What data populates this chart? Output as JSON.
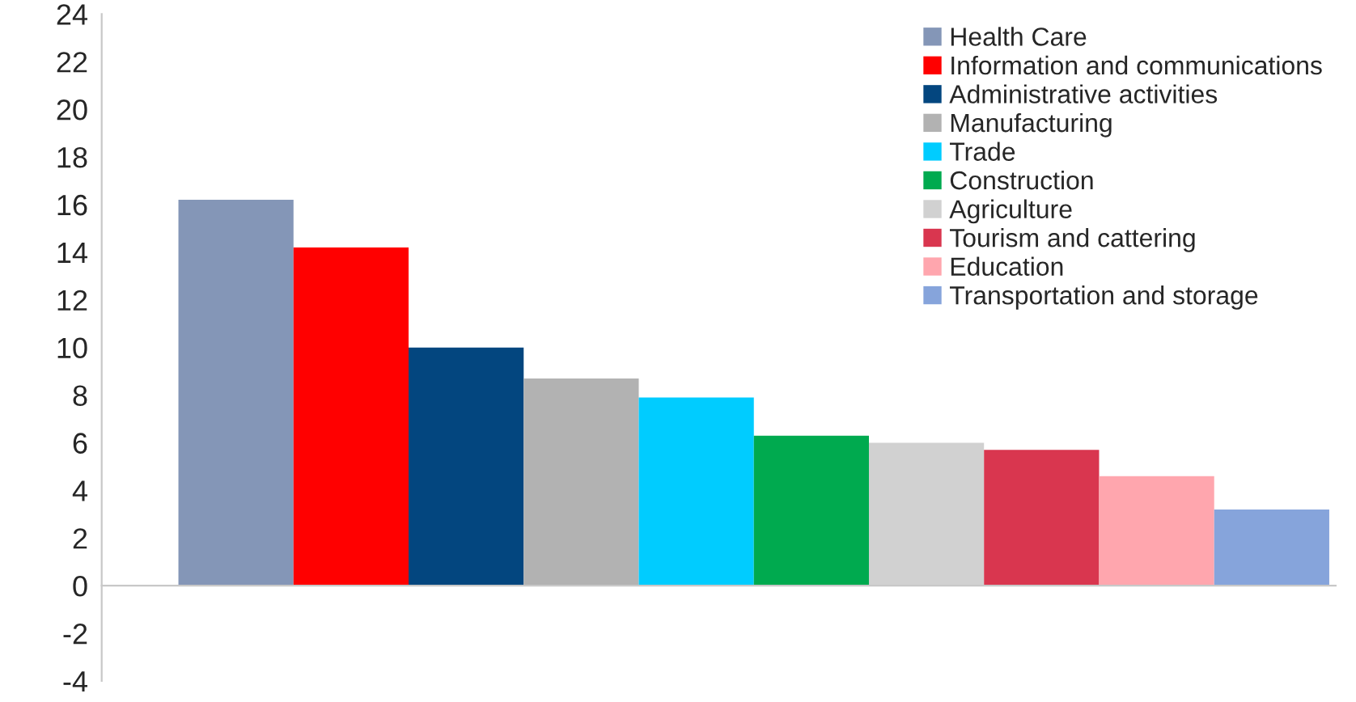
{
  "chart_data": {
    "type": "bar",
    "categories": [
      null
    ],
    "series": [
      {
        "name": "Health Care",
        "color": "#8496b7",
        "values": [
          16.2
        ]
      },
      {
        "name": "Information and communications",
        "color": "#ff0000",
        "values": [
          14.2
        ]
      },
      {
        "name": "Administrative activities",
        "color": "#03467f",
        "values": [
          10.0
        ]
      },
      {
        "name": "Manufacturing",
        "color": "#b2b2b2",
        "values": [
          8.7
        ]
      },
      {
        "name": "Trade",
        "color": "#00ccff",
        "values": [
          7.9
        ]
      },
      {
        "name": "Construction",
        "color": "#00aa4f",
        "values": [
          6.3
        ]
      },
      {
        "name": "Agriculture",
        "color": "#d1d1d1",
        "values": [
          6.0
        ]
      },
      {
        "name": "Tourism and cattering",
        "color": "#d9364f",
        "values": [
          5.7
        ]
      },
      {
        "name": "Education",
        "color": "#ffa6ae",
        "values": [
          4.6
        ]
      },
      {
        "name": "Transportation and storage",
        "color": "#86a4db",
        "values": [
          3.2
        ]
      }
    ],
    "ylim": [
      -4,
      24
    ],
    "yticks": [
      -4,
      -2,
      0,
      2,
      4,
      6,
      8,
      10,
      12,
      14,
      16,
      18,
      20,
      22,
      24
    ],
    "legend": "top right"
  }
}
